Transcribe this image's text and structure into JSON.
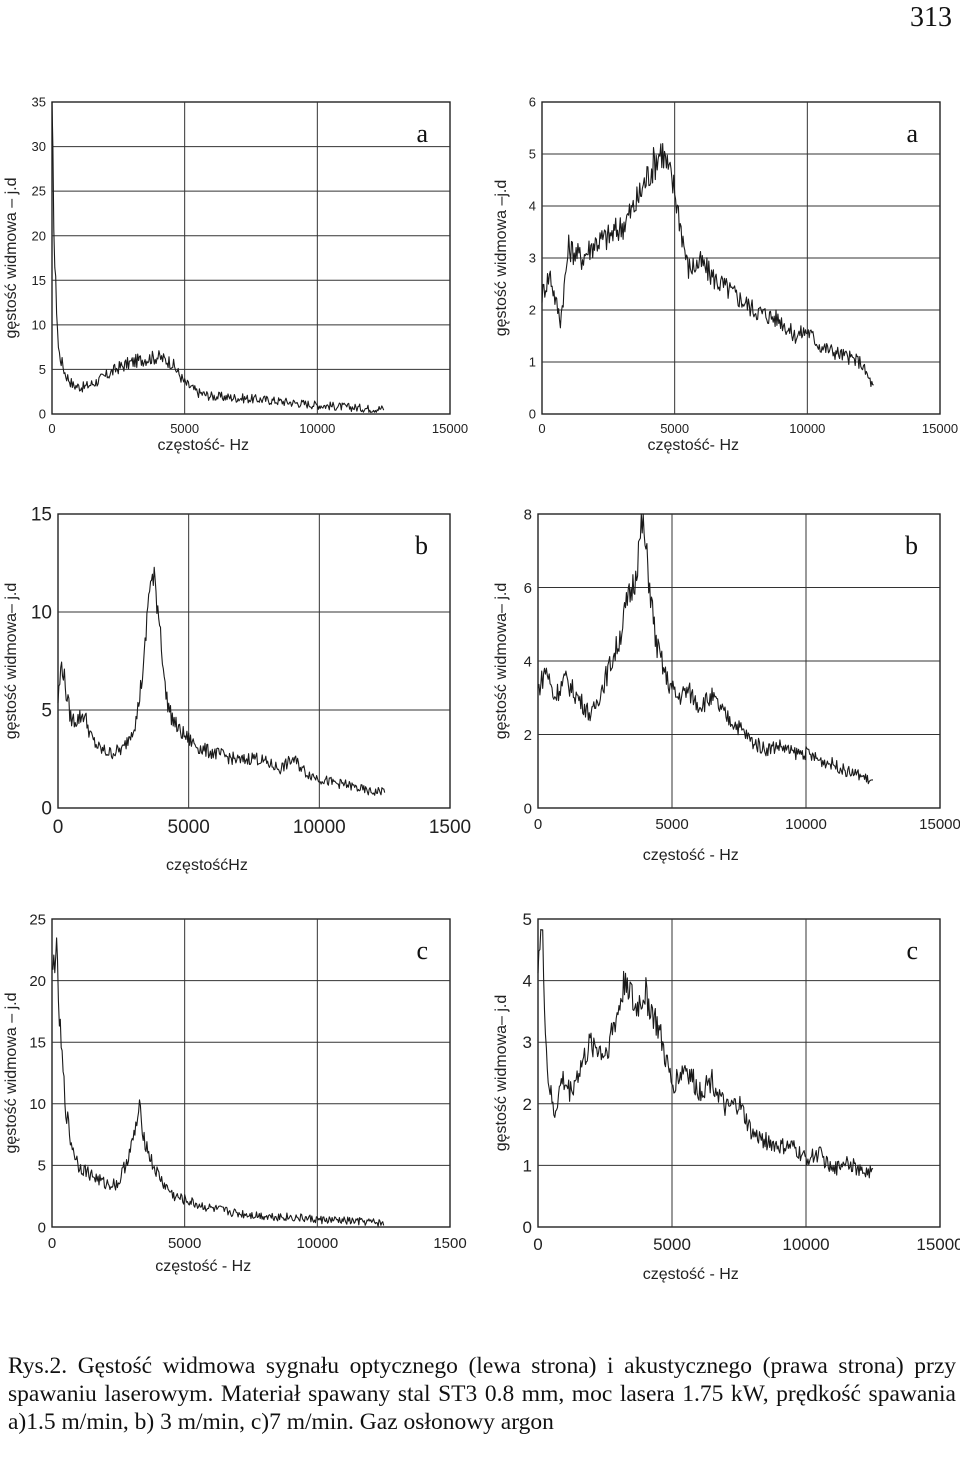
{
  "page_number": "313",
  "caption": "Rys.2. Gęstość widmowa sygnału optycznego (lewa strona) i akustycznego (prawa strona) przy spawaniu laserowym. Materiał spawany stal ST3 0.8 mm, moc lasera 1.75 kW, prędkość spawania a)1.5 m/min, b) 3 m/min, c)7 m/min. Gaz osłonowy argon",
  "chart_data": [
    {
      "id": "a-left",
      "type": "line",
      "panel_label": "a",
      "xlabel": "częstość- Hz",
      "ylabel": "gęstość widmowa – j.d",
      "xlim": [
        0,
        15000
      ],
      "ylim": [
        0,
        35
      ],
      "xticks": [
        "0",
        "5000",
        "10000",
        "15000"
      ],
      "yticks": [
        "0",
        "5",
        "10",
        "15",
        "20",
        "25",
        "30",
        "35"
      ],
      "series": [
        {
          "x": [
            0,
            100,
            250,
            500,
            800,
            1200,
            1600,
            2000,
            2500,
            3000,
            3500,
            4000,
            4500,
            5000,
            5500,
            6000,
            7000,
            8000,
            9000,
            10000,
            11000,
            12000,
            12500
          ],
          "values": [
            34,
            17,
            7,
            4.5,
            3.2,
            3,
            3.5,
            4.2,
            5.2,
            5.8,
            6.2,
            6.4,
            5.8,
            3.5,
            2.4,
            2.0,
            1.8,
            1.6,
            1.3,
            1.0,
            0.8,
            0.6,
            0.6
          ]
        }
      ]
    },
    {
      "id": "a-right",
      "type": "line",
      "panel_label": "a",
      "xlabel": "częstość- Hz",
      "ylabel": "gęstość widmowa –j.d",
      "xlim": [
        0,
        15000
      ],
      "ylim": [
        0,
        6
      ],
      "xticks": [
        "0",
        "5000",
        "10000",
        "15000"
      ],
      "yticks": [
        "0",
        "1",
        "2",
        "3",
        "4",
        "5",
        "6"
      ],
      "series": [
        {
          "x": [
            0,
            300,
            500,
            700,
            1000,
            1500,
            2000,
            2500,
            3000,
            3500,
            4000,
            4500,
            5000,
            5500,
            6000,
            6500,
            7000,
            7500,
            8000,
            8500,
            9000,
            9500,
            10000,
            10500,
            11000,
            11500,
            12000,
            12500
          ],
          "values": [
            2.3,
            2.7,
            2.2,
            1.8,
            3.2,
            3.0,
            3.3,
            3.4,
            3.6,
            4.0,
            4.6,
            5.1,
            4.3,
            2.8,
            2.9,
            2.6,
            2.4,
            2.2,
            2.0,
            1.9,
            1.8,
            1.5,
            1.6,
            1.3,
            1.2,
            1.1,
            1.0,
            0.5
          ]
        }
      ]
    },
    {
      "id": "b-left",
      "type": "line",
      "panel_label": "b",
      "xlabel": "częstośćHz",
      "ylabel": "gęstość widmowa– j.d",
      "xlim": [
        0,
        15000
      ],
      "ylim": [
        0,
        15
      ],
      "xticks": [
        "0",
        "5000",
        "10000",
        "1500"
      ],
      "yticks": [
        "0",
        "5",
        "10",
        "15"
      ],
      "series": [
        {
          "x": [
            0,
            150,
            300,
            500,
            700,
            1000,
            1300,
            1600,
            2000,
            2500,
            3000,
            3300,
            3500,
            3700,
            3900,
            4100,
            4300,
            4600,
            5000,
            5500,
            6000,
            6500,
            7000,
            7500,
            8000,
            8500,
            9000,
            9500,
            10000,
            10500,
            11000,
            11500,
            12000,
            12500
          ],
          "values": [
            5.5,
            7.5,
            6.0,
            4.5,
            4.5,
            4.8,
            3.5,
            3.0,
            2.8,
            3.0,
            4.5,
            7.5,
            11.5,
            11.5,
            9.5,
            6.0,
            4.8,
            4.0,
            3.5,
            3.0,
            2.8,
            2.6,
            2.4,
            2.6,
            2.3,
            2.0,
            2.5,
            1.8,
            1.5,
            1.3,
            1.2,
            1.0,
            0.8,
            0.9
          ]
        }
      ]
    },
    {
      "id": "b-right",
      "type": "line",
      "panel_label": "b",
      "xlabel": "częstość - Hz",
      "ylabel": "gęstość widmowa– j.d",
      "xlim": [
        0,
        15000
      ],
      "ylim": [
        0,
        8
      ],
      "xticks": [
        "0",
        "5000",
        "10000",
        "15000"
      ],
      "yticks": [
        "0",
        "2",
        "4",
        "6",
        "8"
      ],
      "series": [
        {
          "x": [
            0,
            300,
            600,
            1000,
            1500,
            2000,
            2500,
            3000,
            3300,
            3600,
            3900,
            4100,
            4400,
            4800,
            5200,
            5600,
            6000,
            6500,
            7000,
            7500,
            8000,
            8500,
            9000,
            9500,
            10000,
            10500,
            11000,
            11500,
            12000,
            12500
          ],
          "values": [
            3.2,
            3.8,
            3.0,
            3.5,
            3.0,
            2.5,
            3.5,
            4.5,
            5.5,
            6.2,
            7.8,
            6.5,
            4.5,
            3.5,
            3.0,
            3.2,
            2.8,
            3.0,
            2.5,
            2.2,
            1.8,
            1.6,
            1.7,
            1.5,
            1.5,
            1.3,
            1.2,
            1.0,
            0.9,
            0.7
          ]
        }
      ]
    },
    {
      "id": "c-left",
      "type": "line",
      "panel_label": "c",
      "xlabel": "częstość - Hz",
      "ylabel": "gęstość widmowa – j.d",
      "xlim": [
        0,
        15000
      ],
      "ylim": [
        0,
        25
      ],
      "xticks": [
        "0",
        "5000",
        "10000",
        "1500"
      ],
      "yticks": [
        "0",
        "5",
        "10",
        "15",
        "20",
        "25"
      ],
      "series": [
        {
          "x": [
            0,
            150,
            300,
            500,
            700,
            1000,
            1500,
            2000,
            2500,
            3000,
            3300,
            3500,
            3800,
            4200,
            4600,
            5000,
            5500,
            6000,
            7000,
            8000,
            9000,
            10000,
            11000,
            12000,
            12500
          ],
          "values": [
            20,
            23,
            16,
            10,
            7,
            5,
            4.2,
            3.5,
            3.5,
            6.5,
            9.5,
            7,
            5,
            3.5,
            2.5,
            2.2,
            1.8,
            1.5,
            1.1,
            0.9,
            0.8,
            0.6,
            0.5,
            0.4,
            0.3
          ]
        }
      ]
    },
    {
      "id": "c-right",
      "type": "line",
      "panel_label": "c",
      "xlabel": "częstość - Hz",
      "ylabel": "gęstość widmowa– j.d",
      "xlim": [
        0,
        15000
      ],
      "ylim": [
        0,
        5
      ],
      "xticks": [
        "0",
        "5000",
        "10000",
        "15000"
      ],
      "yticks": [
        "0",
        "1",
        "2",
        "3",
        "4",
        "5"
      ],
      "series": [
        {
          "x": [
            0,
            150,
            350,
            600,
            900,
            1200,
            1500,
            2000,
            2500,
            3000,
            3300,
            3600,
            4000,
            4500,
            5000,
            5500,
            6000,
            6500,
            7000,
            7500,
            8000,
            8500,
            9000,
            9500,
            10000,
            10500,
            11000,
            11500,
            12000,
            12500
          ],
          "values": [
            4.4,
            4.8,
            2.5,
            1.8,
            2.4,
            2.2,
            2.5,
            3.0,
            2.8,
            3.5,
            4.1,
            3.5,
            3.8,
            3.2,
            2.3,
            2.6,
            2.2,
            2.4,
            1.9,
            2.0,
            1.5,
            1.4,
            1.3,
            1.3,
            1.1,
            1.2,
            0.9,
            1.1,
            0.9,
            0.9
          ]
        }
      ]
    }
  ]
}
